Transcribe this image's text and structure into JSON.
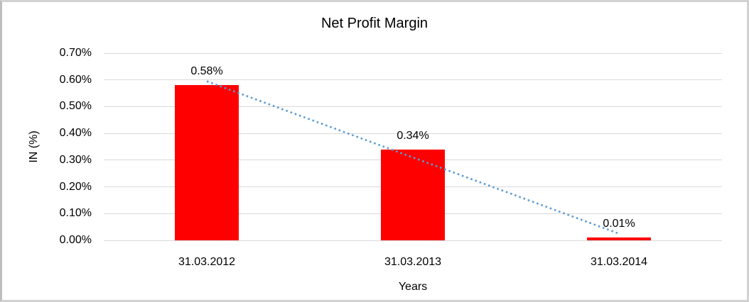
{
  "chart_data": {
    "type": "bar",
    "title": "Net Profit Margin",
    "categories": [
      "31.03.2012",
      "31.03.2013",
      "31.03.2014"
    ],
    "values": [
      0.58,
      0.34,
      0.01
    ],
    "data_labels": [
      "0.58%",
      "0.34%",
      "0.01%"
    ],
    "xlabel": "Years",
    "ylabel": "IN (%)",
    "unit": "%",
    "ylim": [
      0,
      0.7
    ],
    "ytick_step": 0.1,
    "ytick_labels": [
      "0.00%",
      "0.10%",
      "0.20%",
      "0.30%",
      "0.40%",
      "0.50%",
      "0.60%",
      "0.70%"
    ],
    "grid": true,
    "legend": "none",
    "bar_color": "#FF0000",
    "gridline_color": "#D9D9D9",
    "text_color": "#000000",
    "trendline": {
      "type": "linear",
      "style": "dotted",
      "color": "#5B9BD5",
      "start_value": 0.595,
      "end_value": 0.025
    }
  }
}
